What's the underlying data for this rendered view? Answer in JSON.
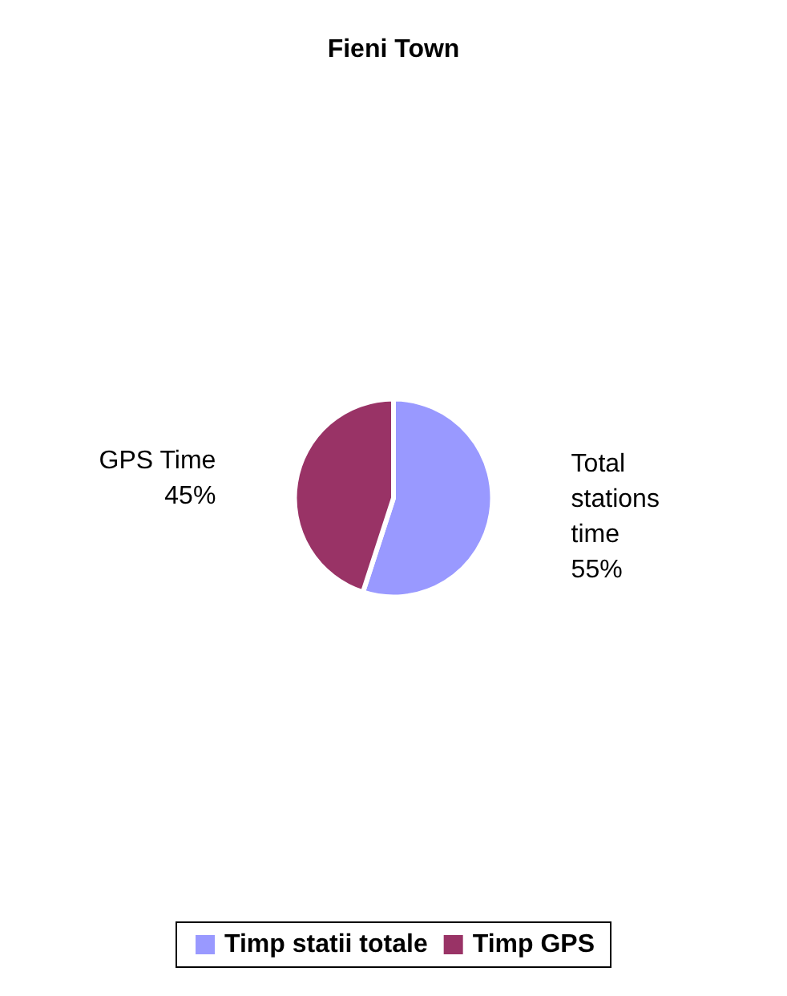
{
  "chart_data": {
    "type": "pie",
    "title": "Fieni Town",
    "categories": [
      "Timp statii totale",
      "Timp GPS"
    ],
    "values": [
      55,
      45
    ],
    "colors": [
      "#9999ff",
      "#993366"
    ],
    "value_labels": [
      "Total\nstations\ntime\n55%",
      "GPS Time\n45%"
    ],
    "legend": "bottom"
  }
}
